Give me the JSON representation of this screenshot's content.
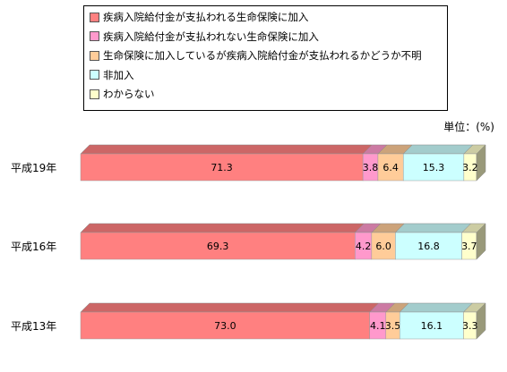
{
  "chart_data": {
    "type": "bar",
    "orientation": "horizontal",
    "stacked": "100%",
    "unit": "単位：(%)",
    "categories": [
      "平成19年",
      "平成16年",
      "平成13年"
    ],
    "series": [
      {
        "name": "疾病入院給付金が支払われる生命保険に加入",
        "color": "#ff8080",
        "values": [
          71.3,
          69.3,
          73.0
        ]
      },
      {
        "name": "疾病入院給付金が支払われない生命保険に加入",
        "color": "#ff99cc",
        "values": [
          3.8,
          4.2,
          4.1
        ]
      },
      {
        "name": "生命保険に加入しているが疾病入院給付金が支払われるかどうか不明",
        "color": "#ffcc99",
        "values": [
          6.4,
          6.0,
          3.5
        ]
      },
      {
        "name": "非加入",
        "color": "#ccffff",
        "values": [
          15.3,
          16.8,
          16.1
        ]
      },
      {
        "name": "わからない",
        "color": "#ffffcc",
        "values": [
          3.2,
          3.7,
          3.3
        ]
      }
    ],
    "value_labels": [
      [
        "71.3",
        "3.8",
        "6.4",
        "15.3",
        "3.2"
      ],
      [
        "69.3",
        "4.2",
        "6.0",
        "16.8",
        "3.7"
      ],
      [
        "73.0",
        "4.1",
        "3.5",
        "16.1",
        "3.3"
      ]
    ],
    "legend_position": "top",
    "grid": false
  }
}
